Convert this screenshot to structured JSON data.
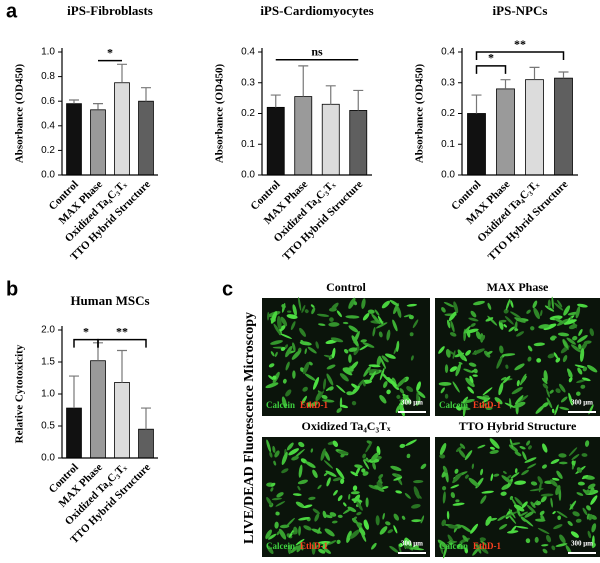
{
  "panel_labels": [
    "a",
    "b",
    "c"
  ],
  "chart_data": [
    {
      "type": "bar",
      "title": "iPS-Fibroblasts",
      "y_label": "Absorbance (OD450)",
      "categories": [
        "Control",
        "MAX Phase",
        "Oxidized Ta₄C₃Tₓ",
        "TTO Hybrid Structure"
      ],
      "values": [
        0.58,
        0.53,
        0.75,
        0.6
      ],
      "errors": [
        0.03,
        0.05,
        0.15,
        0.11
      ],
      "colors": [
        "#111111",
        "#9a9a9a",
        "#dcdcdc",
        "#5f5f5f"
      ],
      "ylim": [
        0,
        1.0
      ],
      "yticks": [
        {
          "value": 0,
          "label": "0.0"
        },
        0.2,
        0.4,
        0.6,
        0.8,
        {
          "value": 1.0,
          "label": "1.0"
        }
      ],
      "annotations": [
        "*"
      ]
    },
    {
      "type": "bar",
      "title": "iPS-Cardiomyocytes",
      "y_label": "Absorbance (OD450)",
      "categories": [
        "Control",
        "MAX Phase",
        "Oxidized Ta₄C₃Tₓ",
        "TTO Hybrid Structure"
      ],
      "values": [
        0.22,
        0.255,
        0.23,
        0.21
      ],
      "errors": [
        0.04,
        0.1,
        0.06,
        0.065
      ],
      "colors": [
        "#111111",
        "#9a9a9a",
        "#dcdcdc",
        "#5f5f5f"
      ],
      "ylim": [
        0,
        0.4
      ],
      "yticks": [
        {
          "value": 0,
          "label": "0.0"
        },
        0.1,
        0.2,
        0.3,
        0.4
      ],
      "annotations": [
        "ns"
      ]
    },
    {
      "type": "bar",
      "title": "iPS-NPCs",
      "y_label": "Absorbance (OD450)",
      "categories": [
        "Control",
        "MAX Phase",
        "Oxidized Ta₄C₃Tₓ",
        "TTO Hybrid Structure"
      ],
      "values": [
        0.2,
        0.28,
        0.31,
        0.315
      ],
      "errors": [
        0.06,
        0.03,
        0.04,
        0.02
      ],
      "colors": [
        "#111111",
        "#9a9a9a",
        "#dcdcdc",
        "#5f5f5f"
      ],
      "ylim": [
        0,
        0.4
      ],
      "yticks": [
        {
          "value": 0,
          "label": "0.0"
        },
        0.1,
        0.2,
        0.3,
        0.4
      ],
      "annotations": [
        "*",
        "**"
      ]
    },
    {
      "type": "bar",
      "title": "Human MSCs",
      "y_label": "Relative Cytotoxicity",
      "categories": [
        "Control",
        "MAX Phase",
        "Oxidized Ta₄C₃Tₓ",
        "TTO Hybrid Structure"
      ],
      "values": [
        0.78,
        1.52,
        1.18,
        0.45
      ],
      "errors": [
        0.5,
        0.28,
        0.5,
        0.33
      ],
      "colors": [
        "#111111",
        "#9a9a9a",
        "#dcdcdc",
        "#5f5f5f"
      ],
      "ylim": [
        0,
        2.0
      ],
      "yticks": [
        {
          "value": 0,
          "label": "0.0"
        },
        0.5,
        {
          "value": 1.0,
          "label": "1.0"
        },
        1.5,
        {
          "value": 2.0,
          "label": "2.0"
        }
      ],
      "annotations": [
        "*",
        "**"
      ]
    }
  ],
  "microscopy": {
    "title": "LIVE/DEAD Fluorescence Microscopy",
    "panels": [
      {
        "title": "Control",
        "stains": [
          "Calcein",
          "EthD-1"
        ],
        "scale": "300 μm"
      },
      {
        "title": "MAX Phase",
        "stains": [
          "Calcein",
          "EthD-1"
        ],
        "scale": "300 μm"
      },
      {
        "title": "Oxidized Ta₄C₃Tₓ",
        "stains": [
          "Calcein",
          "EthD-1"
        ],
        "scale": "300 μm"
      },
      {
        "title": "TTO Hybrid Structure",
        "stains": [
          "Calcein",
          "EthD-1"
        ],
        "scale": "300 μm"
      }
    ]
  }
}
